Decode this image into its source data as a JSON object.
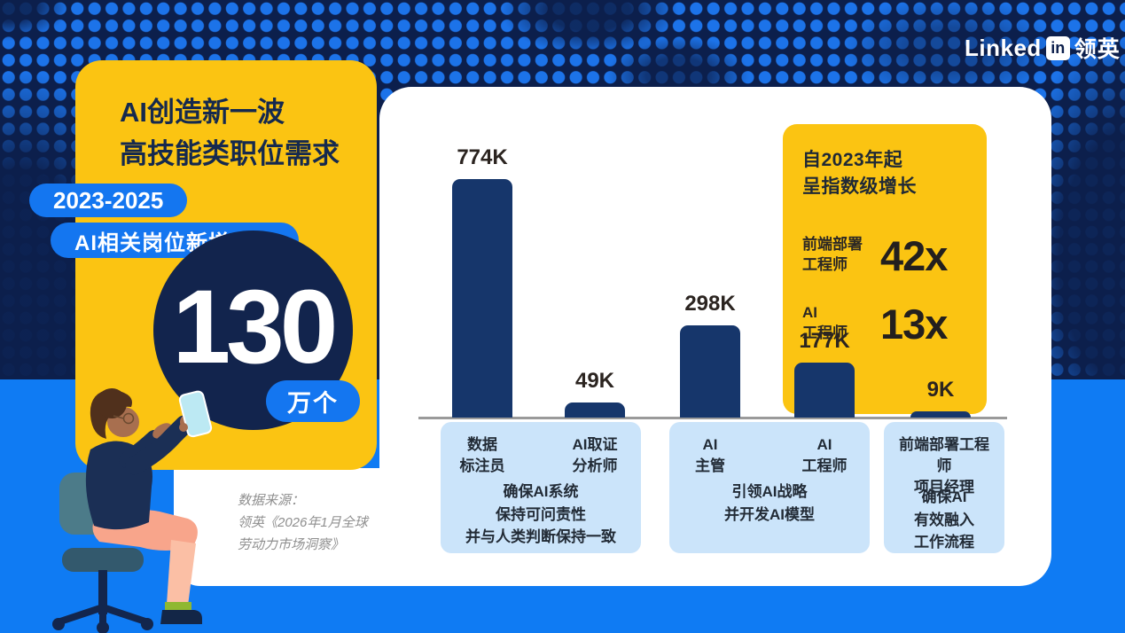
{
  "logo": {
    "linked": "Linked",
    "in_badge": "in",
    "chinese": "领英"
  },
  "headline": {
    "line1": "AI创造新一波",
    "line2": "高技能类职位需求"
  },
  "badges": {
    "years": "2023-2025",
    "statement": "AI相关岗位新增至少"
  },
  "stat": {
    "number": "130",
    "unit": "万个"
  },
  "source": {
    "line1": "数据来源：",
    "line2": "领英《2026年1月全球",
    "line3": "劳动力市场洞察》"
  },
  "chart_data": {
    "type": "bar",
    "title": "AI相关岗位新增（2023-2025）",
    "categories": [
      "数据标注员",
      "AI取证分析师",
      "AI主管",
      "AI工程师",
      "前端部署工程师/项目经理"
    ],
    "values": [
      774000,
      49000,
      298000,
      177000,
      9000
    ],
    "value_labels": [
      "774K",
      "49K",
      "298K",
      "177K",
      "9K"
    ],
    "ylim": [
      0,
      800000
    ],
    "grid": false,
    "bar_color": "#16366B",
    "baseline_color": "#9A9A9A",
    "callout": {
      "title_line1": "自2023年起",
      "title_line2": "呈指数级增长",
      "items": [
        {
          "label_line1": "前端部署",
          "label_line2": "工程师",
          "value": "42x"
        },
        {
          "label_line1": "AI",
          "label_line2": "工程师",
          "value": "13x"
        }
      ]
    },
    "groups": [
      {
        "role1_line1": "数据",
        "role1_line2": "标注员",
        "role2_line1": "AI取证",
        "role2_line2": "分析师",
        "desc_line1": "确保AI系统",
        "desc_line2": "保持可问责性",
        "desc_line3": "并与人类判断保持一致"
      },
      {
        "role1_line1": "AI",
        "role1_line2": "主管",
        "role2_line1": "AI",
        "role2_line2": "工程师",
        "desc_line1": "引领AI战略",
        "desc_line2": "并开发AI模型"
      },
      {
        "role_line1": "前端部署工程师",
        "role_line2": "项目经理",
        "desc_line1": "确保AI",
        "desc_line2": "有效融入",
        "desc_line3": "工作流程"
      }
    ]
  },
  "colors": {
    "background_navy": "#0C1F4C",
    "dot_blue": "#1C73E9",
    "bottom_blue": "#0F7BF3",
    "accent_yellow": "#FBC412",
    "pill_blue": "#1476F0",
    "bar_navy": "#16366B",
    "circle_navy": "#12244D",
    "label_box_blue": "#CBE4FA",
    "text_dark": "#2B2420",
    "headline_navy": "#15294E"
  }
}
